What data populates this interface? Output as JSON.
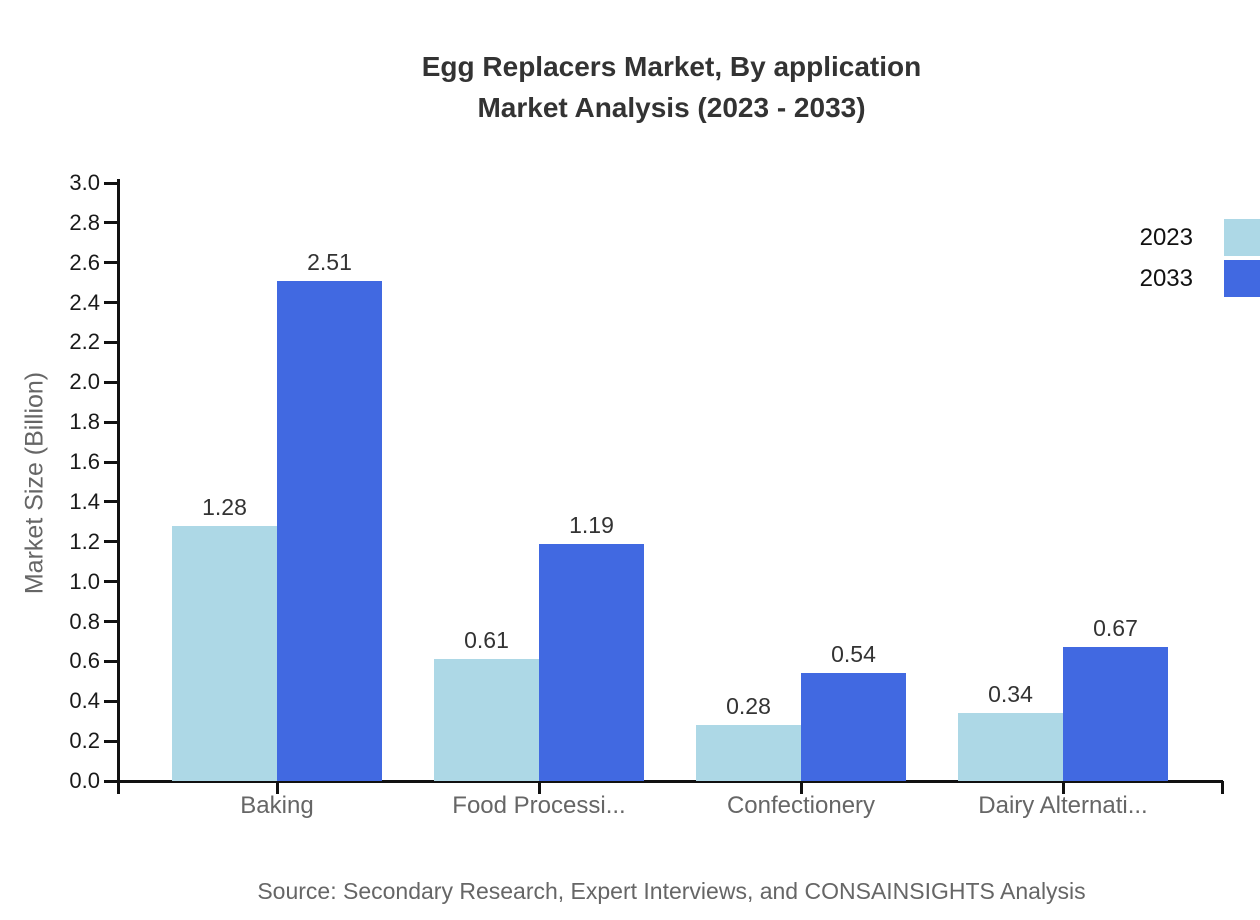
{
  "title": {
    "line1": "Egg Replacers Market, By application",
    "line2": "Market Analysis (2023 - 2033)"
  },
  "source": "Source: Secondary Research, Expert Interviews, and CONSAINSIGHTS Analysis",
  "chart_data": {
    "type": "bar",
    "categories": [
      "Baking",
      "Food Processi...",
      "Confectionery",
      "Dairy Alternati..."
    ],
    "series": [
      {
        "name": "2023",
        "color": "#ADD8E6",
        "values": [
          1.28,
          0.61,
          0.28,
          0.34
        ]
      },
      {
        "name": "2033",
        "color": "#4169E1",
        "values": [
          2.51,
          1.19,
          0.54,
          0.67
        ]
      }
    ],
    "title": "Egg Replacers Market, By application Market Analysis (2023 - 2033)",
    "xlabel": "",
    "ylabel": "Market Size (Billion)",
    "ylim": [
      0.0,
      3.0
    ],
    "yticks": [
      0.0,
      0.2,
      0.4,
      0.6,
      0.8,
      1.0,
      1.2,
      1.4,
      1.6,
      1.8,
      2.0,
      2.2,
      2.4,
      2.6,
      2.8,
      3.0
    ],
    "grid": false,
    "legend_position": "right",
    "value_labels": true,
    "axis_color": "#111111",
    "label_color": "#666666",
    "value_label_color": "#333333"
  }
}
